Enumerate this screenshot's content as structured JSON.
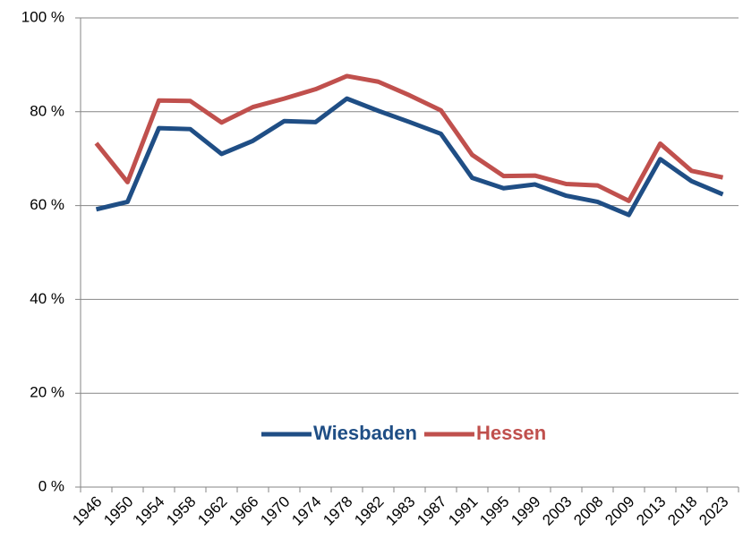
{
  "chart_data": {
    "type": "line",
    "categories": [
      "1946",
      "1950",
      "1954",
      "1958",
      "1962",
      "1966",
      "1970",
      "1974",
      "1978",
      "1982",
      "1983",
      "1987",
      "1991",
      "1995",
      "1999",
      "2003",
      "2008",
      "2009",
      "2013",
      "2018",
      "2023"
    ],
    "series": [
      {
        "name": "Wiesbaden",
        "color": "#1f4e85",
        "values": [
          59.2,
          60.8,
          76.5,
          76.3,
          71.0,
          73.8,
          78.0,
          77.8,
          82.8,
          80.2,
          77.8,
          75.3,
          65.9,
          63.7,
          64.5,
          62.1,
          60.8,
          58.0,
          69.9,
          65.2,
          62.4
        ]
      },
      {
        "name": "Hessen",
        "color": "#c0504d",
        "values": [
          73.3,
          65.0,
          82.4,
          82.3,
          77.7,
          81.0,
          82.8,
          84.8,
          87.6,
          86.4,
          83.5,
          80.3,
          70.8,
          66.3,
          66.4,
          64.6,
          64.3,
          61.0,
          73.2,
          67.4,
          66.0
        ]
      }
    ],
    "ylim": [
      0,
      100
    ],
    "yticks": [
      {
        "value": 0,
        "label": "0 %"
      },
      {
        "value": 20,
        "label": "20 %"
      },
      {
        "value": 40,
        "label": "40 %"
      },
      {
        "value": 60,
        "label": "60 %"
      },
      {
        "value": 80,
        "label": "80 %"
      },
      {
        "value": 100,
        "label": "100 %"
      }
    ],
    "grid": true,
    "legend": "bottom"
  }
}
